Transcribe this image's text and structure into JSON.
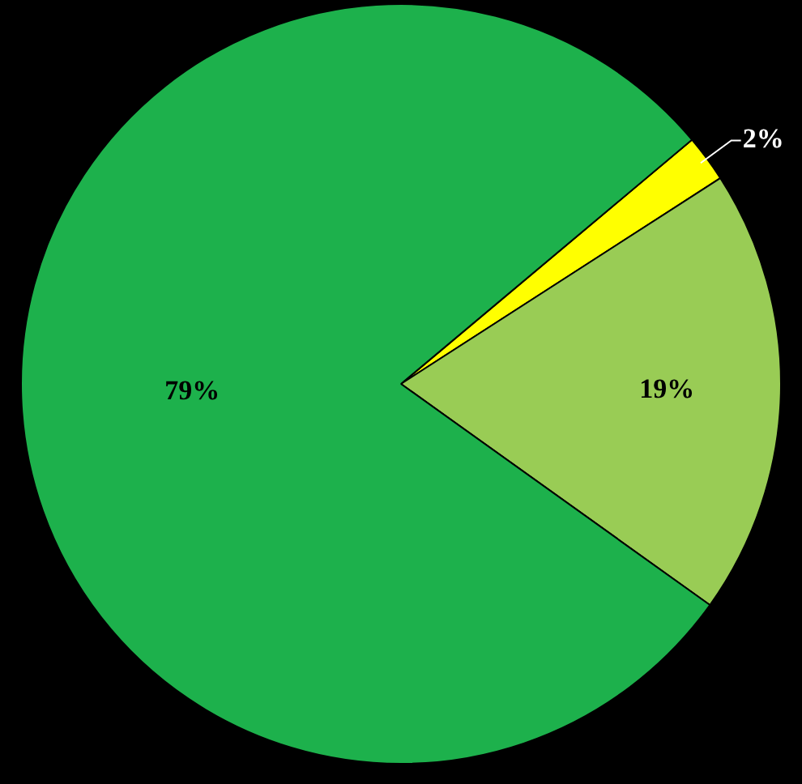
{
  "chart_data": {
    "type": "pie",
    "categories": [
      null,
      null,
      null
    ],
    "values": [
      2,
      19,
      79
    ],
    "colors": [
      "#ffff00",
      "#99cc55",
      "#1db14c"
    ],
    "value_labels": [
      "2%",
      "19%",
      "79%"
    ]
  }
}
